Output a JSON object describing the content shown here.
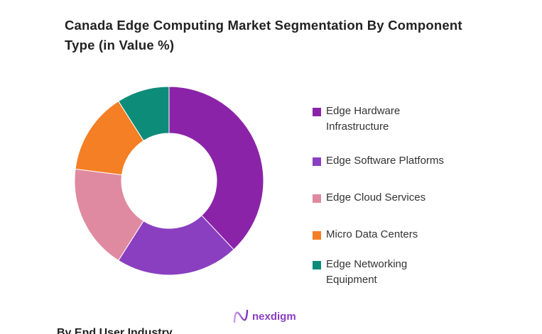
{
  "chart_data": {
    "type": "pie",
    "donut": true,
    "title": "Canada Edge Computing Market Segmentation By Component Type (in Value %)",
    "categories": [
      "Edge Hardware Infrastructure",
      "Edge Software Platforms",
      "Edge Cloud Services",
      "Micro Data Centers",
      "Edge Networking Equipment"
    ],
    "values": [
      38,
      21,
      18,
      14,
      9
    ],
    "colors": [
      "#8B23A8",
      "#8A3FC0",
      "#DF8AA0",
      "#F47F24",
      "#0E8C7A"
    ],
    "legend_position": "right"
  },
  "logo_text": "nexdigm",
  "next_section_heading": "By End User Industry"
}
